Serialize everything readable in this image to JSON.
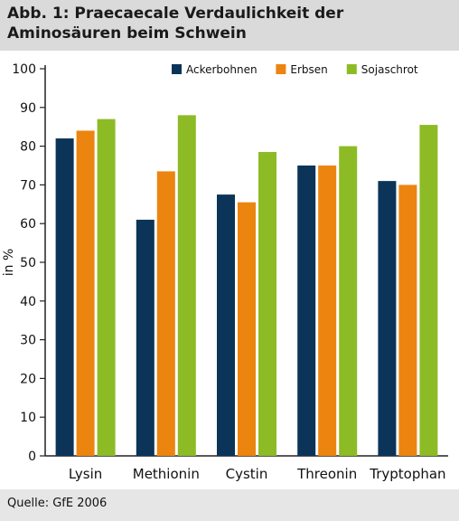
{
  "title": "Abb. 1: Praecaecale Verdaulichkeit der Aminosäuren beim Schwein",
  "source": "Quelle: GfE 2006",
  "colors": {
    "Ackerbohnen": "#0b3458",
    "Erbsen": "#ec8410",
    "Sojaschrot": "#8dbb25"
  },
  "chart_data": {
    "type": "bar",
    "categories": [
      "Lysin",
      "Methionin",
      "Cystin",
      "Threonin",
      "Tryptophan"
    ],
    "series": [
      {
        "name": "Ackerbohnen",
        "values": [
          82,
          61,
          67.5,
          75,
          71
        ]
      },
      {
        "name": "Erbsen",
        "values": [
          84,
          73.5,
          65.5,
          75,
          70
        ]
      },
      {
        "name": "Sojaschrot",
        "values": [
          87,
          88,
          78.5,
          80,
          85.5
        ]
      }
    ],
    "title": "",
    "xlabel": "",
    "ylabel": "in %",
    "ylim": [
      0,
      100
    ],
    "yticks": [
      0,
      10,
      20,
      30,
      40,
      50,
      60,
      70,
      80,
      90,
      100
    ],
    "grid": false,
    "legend": "top"
  }
}
